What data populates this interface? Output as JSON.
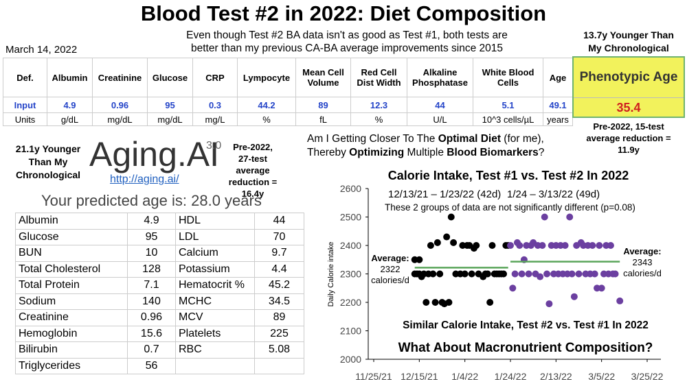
{
  "header": {
    "title": "Blood Test #2 in 2022: Diet Composition",
    "date": "March 14, 2022",
    "subtitle_lines": [
      "Even though Test #2 BA data isn't as good as Test #1, both tests are",
      "better than my previous CA-BA average improvements since 2015"
    ]
  },
  "top_table": {
    "headers": [
      "Def.",
      "Albumin",
      "Creatinine",
      "Glucose",
      "CRP",
      "Lympocyte",
      "Mean Cell Volume",
      "Red Cell Dist Width",
      "Alkaline Phosphatase",
      "White Blood Cells",
      "Age"
    ],
    "rows": [
      [
        "Input",
        "4.9",
        "0.96",
        "95",
        "0.3",
        "44.2",
        "89",
        "12.3",
        "44",
        "5.1",
        "49.1"
      ],
      [
        "Units",
        "g/dL",
        "mg/dL",
        "mg/dL",
        "mg/L",
        "%",
        "fL",
        "%",
        "U/L",
        "10^3 cells/µL",
        "years"
      ]
    ]
  },
  "phenotypic": {
    "note_lines": [
      "13.7y Younger Than",
      "My Chronological"
    ],
    "header": "Phenotypic Age",
    "value": "35.4",
    "pre_2022_note": "Pre-2022, 15-test average reduction = 11.9y"
  },
  "aging_ai": {
    "note": "21.1y Younger Than My Chronological",
    "logo": "Aging.AI",
    "version": "3.0",
    "link": "http://aging.ai/",
    "pre_2022_note": "Pre-2022, 27-test average reduction = 16.4y",
    "predicted": "Your predicted age is: 28.0 years",
    "rows": [
      [
        "Albumin",
        "4.9",
        "HDL",
        "44"
      ],
      [
        "Glucose",
        "95",
        "LDL",
        "70"
      ],
      [
        "BUN",
        "10",
        "Calcium",
        "9.7"
      ],
      [
        "Total Cholesterol",
        "128",
        "Potassium",
        "4.4"
      ],
      [
        "Total Protein",
        "7.1",
        "Hematocrit %",
        "45.2"
      ],
      [
        "Sodium",
        "140",
        "MCHC",
        "34.5"
      ],
      [
        "Creatinine",
        "0.96",
        "MCV",
        "89"
      ],
      [
        "Hemoglobin",
        "15.6",
        "Platelets",
        "225"
      ],
      [
        "Bilirubin",
        "0.7",
        "RBC",
        "5.08"
      ],
      [
        "Triglycerides",
        "56"
      ]
    ]
  },
  "question": {
    "line1": [
      "Am I Getting Closer To The ",
      "Optimal Diet",
      " (for me),"
    ],
    "line2": [
      "Thereby ",
      "Optimizing",
      " Multiple ",
      "Blood Biomarkers",
      "?"
    ]
  },
  "chart_data": {
    "type": "scatter",
    "title": "Calorie Intake, Test #1 vs. Test #2 In 2022",
    "y_label": "Daily Calorie intake",
    "annotations": [
      "12/13/21 – 1/23/22 (42d)",
      "1/24 – 3/13/22 (49d)",
      "These 2 groups of data are not significantly different (p=0.08)",
      "Similar Calorie Intake, Test #2 vs. Test #1 In 2022",
      "What About Macronutrient Composition?"
    ],
    "xlim": [
      "11/25/21",
      "3/25/22"
    ],
    "xticks": [
      "11/25/21",
      "12/15/21",
      "1/4/22",
      "1/24/22",
      "2/13/22",
      "3/5/22",
      "3/25/22"
    ],
    "ylim": [
      2000,
      2600
    ],
    "yticks": [
      2000,
      2100,
      2200,
      2300,
      2400,
      2500,
      2600
    ],
    "series": [
      {
        "color": "#000000",
        "x": [
          "12/13/21",
          "12/13/21",
          "12/14/21",
          "12/15/21",
          "12/15/21",
          "12/16/21",
          "12/17/21",
          "12/18/21",
          "12/19/21",
          "12/20/21",
          "12/21/21",
          "12/22/21",
          "12/23/21",
          "12/24/21",
          "12/25/21",
          "12/26/21",
          "12/27/21",
          "12/28/21",
          "12/29/21",
          "12/30/21",
          "12/31/21",
          "1/2/22",
          "1/3/22",
          "1/4/22",
          "1/5/22",
          "1/6/22",
          "1/7/22",
          "1/8/22",
          "1/9/22",
          "1/10/22",
          "1/12/22",
          "1/13/22",
          "1/14/22",
          "1/15/22",
          "1/16/22",
          "1/17/22",
          "1/18/22",
          "1/19/22",
          "1/20/22",
          "1/21/22",
          "1/22/22",
          "1/23/22"
        ],
        "values": [
          2350,
          2300,
          2300,
          2350,
          2300,
          2290,
          2300,
          2200,
          2300,
          2400,
          2300,
          2200,
          2410,
          2300,
          2200,
          2195,
          2430,
          2200,
          2500,
          2410,
          2300,
          2300,
          2400,
          2300,
          2400,
          2400,
          2300,
          2390,
          2400,
          2300,
          2290,
          2300,
          2300,
          2200,
          2400,
          2300,
          2300,
          2300,
          2300,
          2300,
          2400,
          2400
        ]
      },
      {
        "color": "#6b3fa0",
        "x": [
          "1/24/22",
          "1/25/22",
          "1/26/22",
          "1/27/22",
          "1/28/22",
          "1/29/22",
          "1/30/22",
          "1/31/22",
          "2/1/22",
          "2/2/22",
          "2/3/22",
          "2/4/22",
          "2/5/22",
          "2/6/22",
          "2/7/22",
          "2/8/22",
          "2/9/22",
          "2/10/22",
          "2/11/22",
          "2/12/22",
          "2/13/22",
          "2/14/22",
          "2/15/22",
          "2/16/22",
          "2/17/22",
          "2/18/22",
          "2/19/22",
          "2/20/22",
          "2/21/22",
          "2/22/22",
          "2/23/22",
          "2/24/22",
          "2/25/22",
          "2/26/22",
          "2/27/22",
          "2/28/22",
          "3/1/22",
          "3/2/22",
          "3/3/22",
          "3/4/22",
          "3/5/22",
          "3/6/22",
          "3/7/22",
          "3/8/22",
          "3/9/22",
          "3/10/22",
          "3/11/22",
          "3/13/22"
        ],
        "values": [
          2400,
          2250,
          2300,
          2410,
          2400,
          2300,
          2350,
          2400,
          2300,
          2400,
          2410,
          2300,
          2400,
          2290,
          2400,
          2500,
          2300,
          2195,
          2400,
          2300,
          2400,
          2300,
          2400,
          2300,
          2400,
          2300,
          2500,
          2300,
          2220,
          2400,
          2300,
          2410,
          2400,
          2300,
          2400,
          2300,
          2400,
          2300,
          2250,
          2400,
          2250,
          2300,
          2400,
          2300,
          2400,
          2300,
          2300,
          2205
        ]
      }
    ],
    "average_label": "Average:",
    "average_unit": "calories/d",
    "average_color": "#5aa55a",
    "averages": [
      {
        "value": 2322,
        "start": "12/13/21",
        "end": "1/23/22"
      },
      {
        "value": 2343,
        "start": "1/24/22",
        "end": "3/13/22"
      }
    ]
  }
}
